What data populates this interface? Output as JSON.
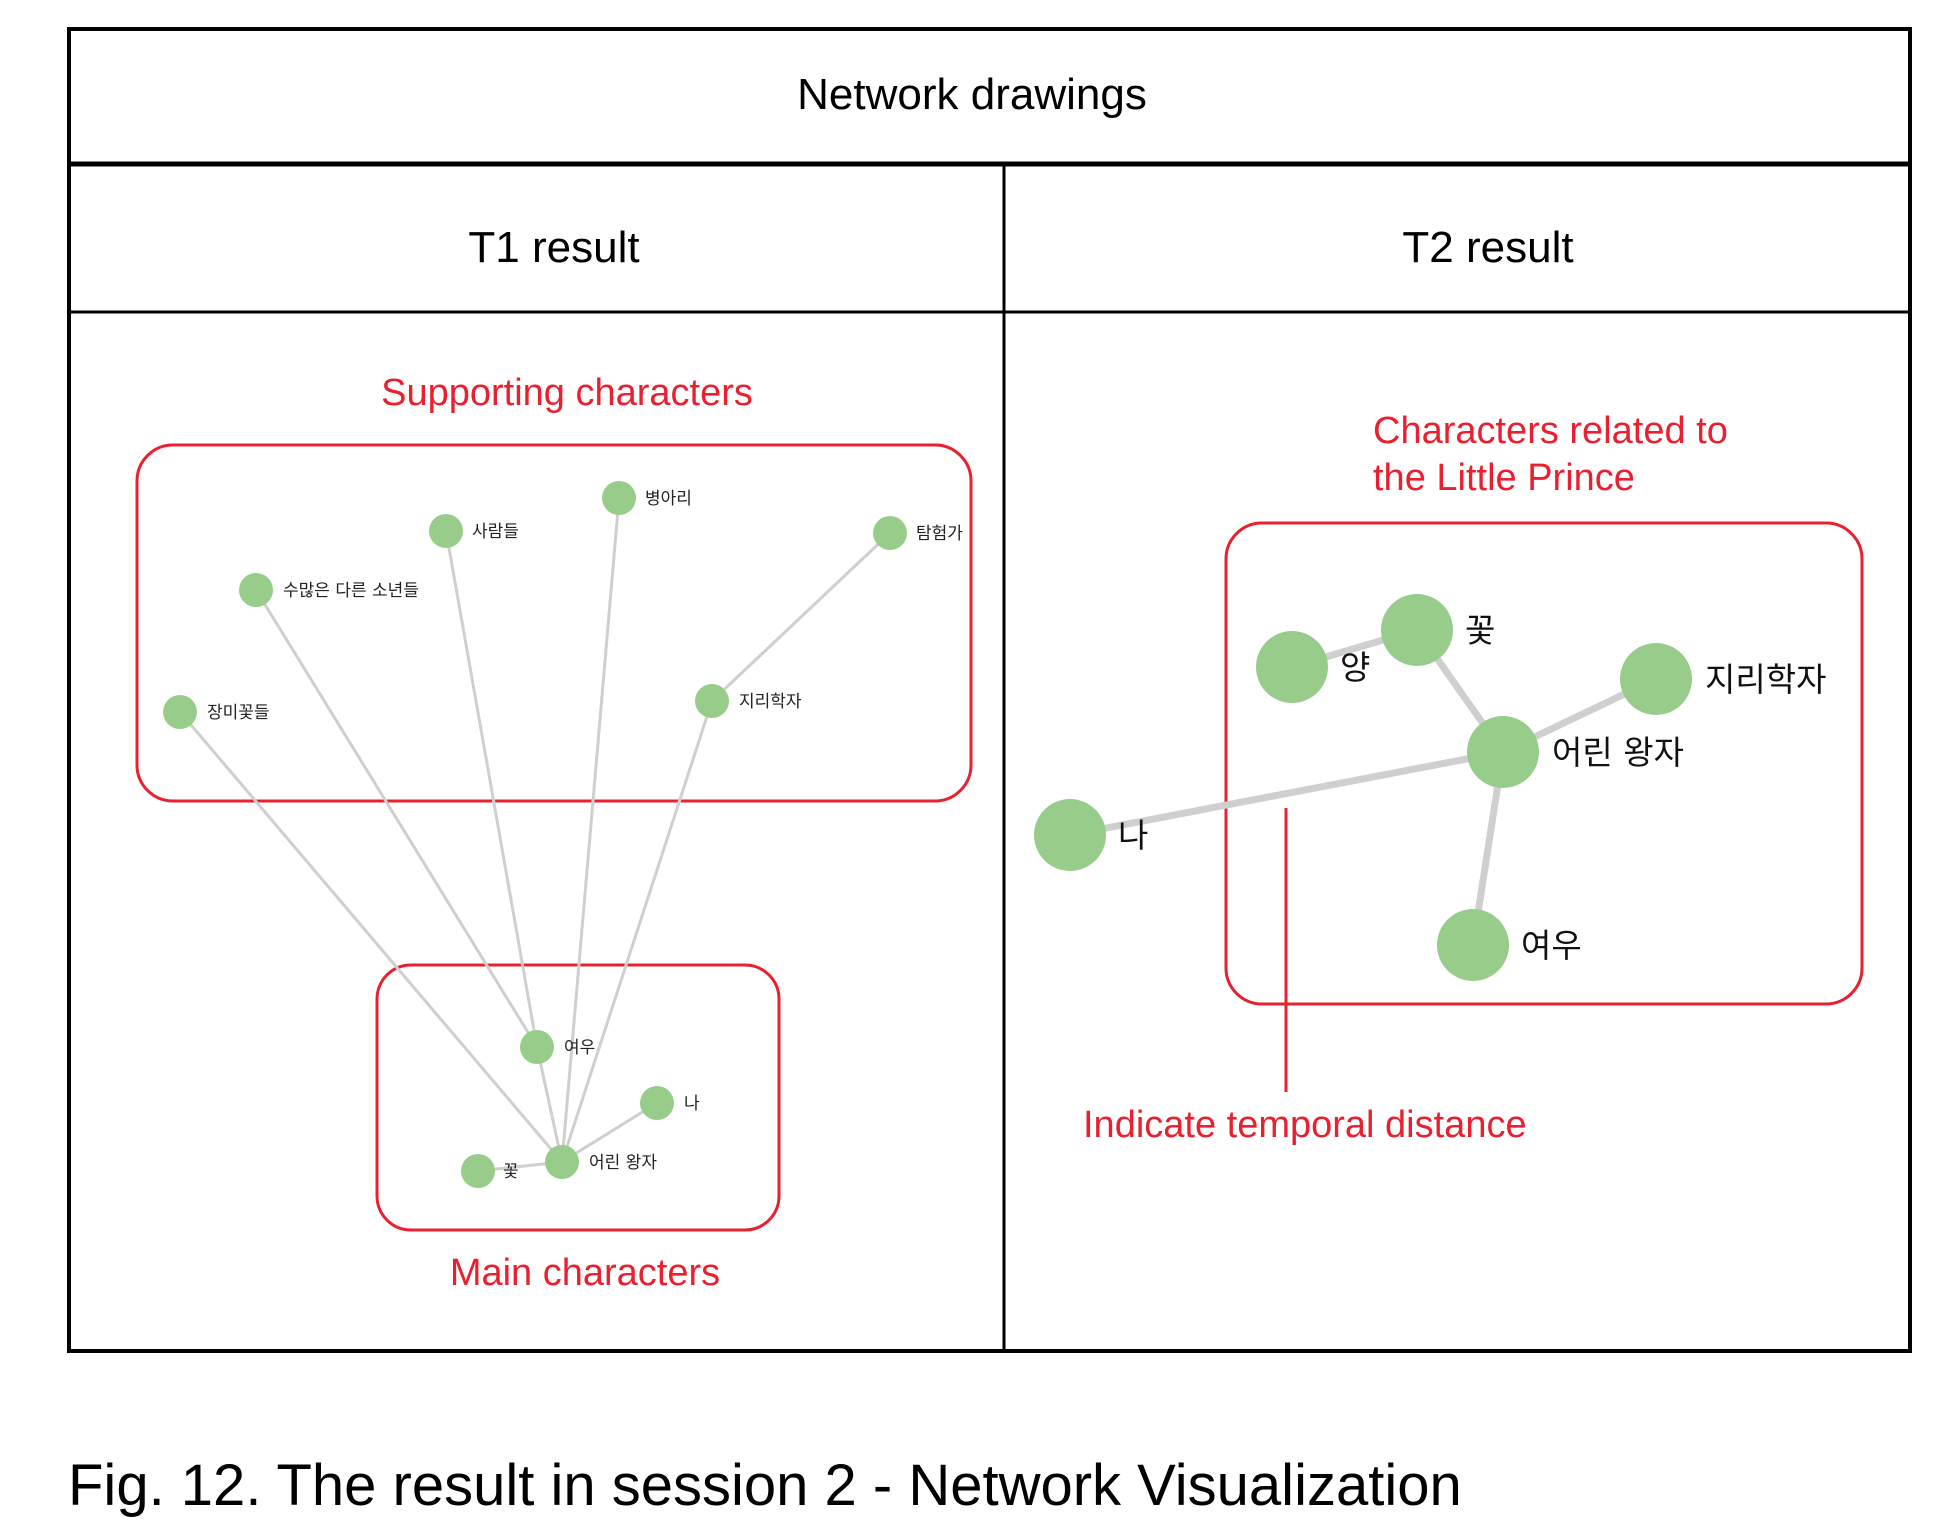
{
  "table": {
    "title": "Network drawings",
    "col1_header": "T1 result",
    "col2_header": "T2 result"
  },
  "colors": {
    "accent_red": "#e8202f",
    "node_green": "#97cc8a",
    "edge_gray": "#cfcfcf",
    "border": "#000000"
  },
  "t1": {
    "supporting_label": "Supporting characters",
    "main_label": "Main characters",
    "nodes": [
      {
        "id": "jangmi",
        "label": "장미꽃들"
      },
      {
        "id": "sumaneun",
        "label": "수많은 다른 소년들"
      },
      {
        "id": "saramdeul",
        "label": "사람들"
      },
      {
        "id": "byeongari",
        "label": "병아리"
      },
      {
        "id": "tamheomga",
        "label": "탐험가"
      },
      {
        "id": "jirihakja",
        "label": "지리학자"
      },
      {
        "id": "yeou",
        "label": "여우"
      },
      {
        "id": "na",
        "label": "나"
      },
      {
        "id": "kkot",
        "label": "꽃"
      },
      {
        "id": "eorinwangja",
        "label": "어린 왕자"
      }
    ]
  },
  "t2": {
    "related_label_line1": "Characters related to",
    "related_label_line2": "the Little Prince",
    "temporal_label": "Indicate temporal distance",
    "nodes": [
      {
        "id": "yang",
        "label": "양"
      },
      {
        "id": "kkot",
        "label": "꽃"
      },
      {
        "id": "jirihakja",
        "label": "지리학자"
      },
      {
        "id": "eorinwangja",
        "label": "어린 왕자"
      },
      {
        "id": "na",
        "label": "나"
      },
      {
        "id": "yeou",
        "label": "여우"
      }
    ]
  },
  "caption": "Fig. 12. The result in session 2 - Network Visualization"
}
